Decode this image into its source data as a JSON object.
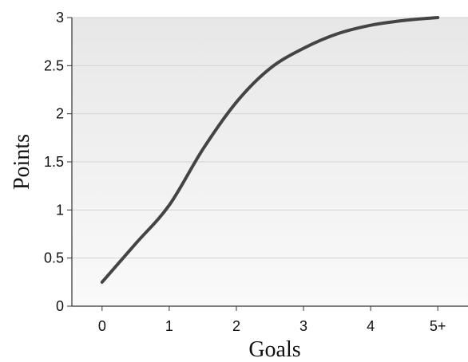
{
  "chart_data": {
    "type": "line",
    "xlabel": "Goals",
    "ylabel": "Points",
    "x_tick_labels": [
      "0",
      "1",
      "2",
      "3",
      "4",
      "5+"
    ],
    "y_ticks": [
      0,
      0.5,
      1,
      1.5,
      2,
      2.5,
      3
    ],
    "y_tick_labels": [
      "0",
      "0.5",
      "1",
      "1.5",
      "2",
      "2.5",
      "3"
    ],
    "xlim": [
      -0.45,
      5.45
    ],
    "ylim": [
      0,
      3
    ],
    "grid": "horizontal",
    "series": [
      {
        "x": [
          0,
          0.5,
          1,
          1.5,
          2,
          2.5,
          3,
          3.5,
          4,
          4.5,
          5
        ],
        "values": [
          0.25,
          0.65,
          1.05,
          1.63,
          2.12,
          2.47,
          2.68,
          2.83,
          2.92,
          2.97,
          3.0
        ]
      }
    ],
    "colors": {
      "line": "#444444",
      "grid": "#d4d4d4",
      "axis": "#333333",
      "background_top": "#e7e7e7",
      "background_bottom": "#fafafa"
    }
  }
}
